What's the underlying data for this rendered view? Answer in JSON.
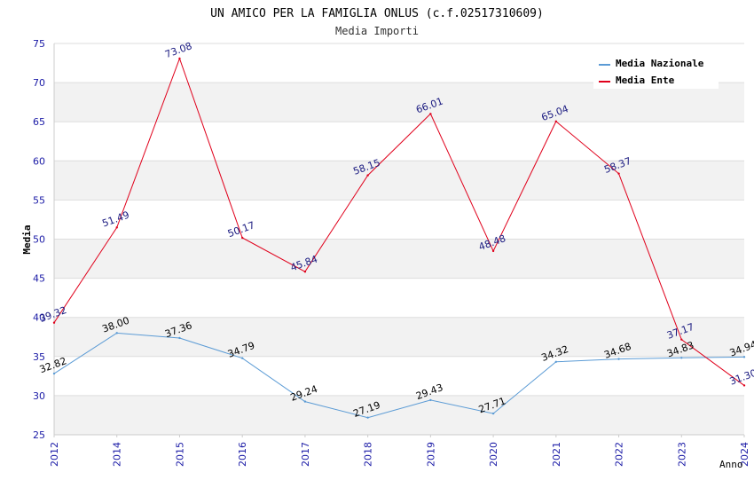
{
  "chart_data": {
    "type": "line",
    "title": "UN AMICO PER LA FAMIGLIA ONLUS (c.f.02517310609)",
    "subtitle": "Media Importi",
    "xlabel": "Anno",
    "ylabel": "Media",
    "ylim": [
      25,
      75
    ],
    "yticks": [
      25,
      30,
      35,
      40,
      45,
      50,
      55,
      60,
      65,
      70,
      75
    ],
    "categories": [
      "2012",
      "2014",
      "2015",
      "2016",
      "2017",
      "2018",
      "2019",
      "2020",
      "2021",
      "2022",
      "2023",
      "2024"
    ],
    "grid": true,
    "legend_position": "top-right",
    "series": [
      {
        "name": "Media Nazionale",
        "color": "#5b9bd5",
        "values": [
          32.82,
          38.0,
          37.36,
          34.79,
          29.24,
          27.19,
          29.43,
          27.71,
          34.32,
          34.68,
          34.83,
          34.94
        ],
        "labels": [
          "32.82",
          "38.00",
          "37.36",
          "34.79",
          "29.24",
          "27.19",
          "29.43",
          "27.71",
          "34.32",
          "34.68",
          "34.83",
          "34.94"
        ]
      },
      {
        "name": "Media Ente",
        "color": "#e0001b",
        "values": [
          39.32,
          51.49,
          73.08,
          50.17,
          45.84,
          58.15,
          66.01,
          48.48,
          65.04,
          58.37,
          37.17,
          31.3
        ],
        "labels": [
          "39.32",
          "51.49",
          "73.08",
          "50.17",
          "45.84",
          "58.15",
          "66.01",
          "48.48",
          "65.04",
          "58.37",
          "37.17",
          "31.30"
        ]
      }
    ]
  }
}
